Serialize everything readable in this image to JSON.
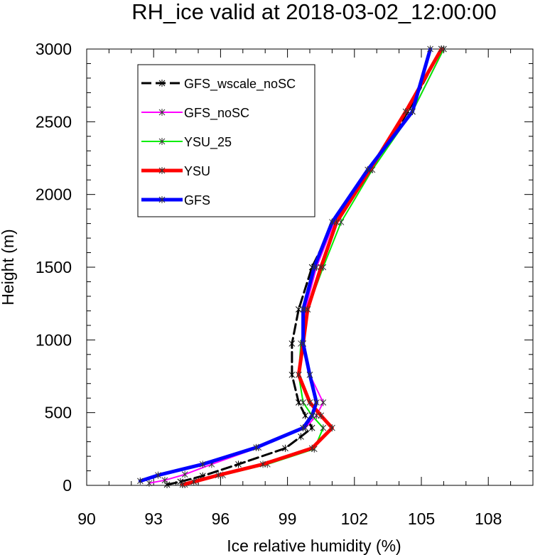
{
  "chart_data": {
    "type": "line",
    "title": "RH_ice valid at 2018-03-02_12:00:00",
    "xlabel": "Ice relative humidity (%)",
    "ylabel": "Height (m)",
    "xlim": [
      90,
      110
    ],
    "ylim": [
      0,
      3000
    ],
    "x_ticks": [
      90,
      93,
      96,
      99,
      102,
      105,
      108
    ],
    "y_ticks": [
      0,
      500,
      1000,
      1500,
      2000,
      2500,
      3000
    ],
    "x_tick_labels": [
      "90",
      "93",
      "96",
      "99",
      "102",
      "105",
      "108"
    ],
    "y_tick_labels": [
      "0",
      "500",
      "1000",
      "1500",
      "2000",
      "2500",
      "3000"
    ],
    "legend_position": "top-left",
    "grid": false,
    "series": [
      {
        "name": "GFS_wscale_noSC",
        "color": "#000000",
        "dashed": true,
        "width": 3,
        "points": [
          [
            93.6,
            5
          ],
          [
            94.2,
            25
          ],
          [
            95.2,
            65
          ],
          [
            96.8,
            145
          ],
          [
            98.9,
            255
          ],
          [
            99.6,
            335
          ],
          [
            100.1,
            395
          ],
          [
            99.8,
            480
          ],
          [
            99.5,
            570
          ],
          [
            99.2,
            760
          ],
          [
            99.2,
            975
          ],
          [
            99.5,
            1210
          ],
          [
            100.1,
            1500
          ],
          [
            101.1,
            1810
          ],
          [
            102.7,
            2170
          ],
          [
            104.4,
            2570
          ],
          [
            105.9,
            3000
          ]
        ]
      },
      {
        "name": "GFS_noSC",
        "color": "#ff00ff",
        "dashed": false,
        "width": 2,
        "points": [
          [
            92.8,
            15
          ],
          [
            93.5,
            35
          ],
          [
            94.4,
            75
          ],
          [
            95.6,
            145
          ],
          [
            97.7,
            260
          ],
          [
            99.8,
            395
          ],
          [
            100.3,
            480
          ],
          [
            100.6,
            570
          ],
          [
            100.0,
            760
          ],
          [
            99.7,
            975
          ],
          [
            99.8,
            1210
          ],
          [
            100.3,
            1500
          ],
          [
            101.1,
            1810
          ],
          [
            102.7,
            2170
          ],
          [
            104.6,
            2570
          ],
          [
            106.0,
            3000
          ]
        ]
      },
      {
        "name": "YSU_25",
        "color": "#00ee00",
        "dashed": false,
        "width": 2,
        "points": [
          [
            94.4,
            5
          ],
          [
            94.9,
            30
          ],
          [
            96.1,
            70
          ],
          [
            98.1,
            145
          ],
          [
            100.2,
            250
          ],
          [
            100.6,
            395
          ],
          [
            100.1,
            480
          ],
          [
            99.7,
            570
          ],
          [
            99.5,
            760
          ],
          [
            99.6,
            975
          ],
          [
            99.9,
            1210
          ],
          [
            100.6,
            1500
          ],
          [
            101.4,
            1810
          ],
          [
            102.8,
            2170
          ],
          [
            104.6,
            2570
          ],
          [
            106.0,
            3000
          ]
        ]
      },
      {
        "name": "YSU",
        "color": "#ff0000",
        "dashed": false,
        "width": 5,
        "points": [
          [
            94.3,
            5
          ],
          [
            94.8,
            25
          ],
          [
            95.9,
            70
          ],
          [
            97.9,
            145
          ],
          [
            100.1,
            255
          ],
          [
            101.0,
            395
          ],
          [
            100.5,
            480
          ],
          [
            100.0,
            570
          ],
          [
            99.5,
            760
          ],
          [
            99.7,
            975
          ],
          [
            99.9,
            1210
          ],
          [
            100.5,
            1500
          ],
          [
            101.2,
            1810
          ],
          [
            102.7,
            2170
          ],
          [
            104.3,
            2570
          ],
          [
            105.9,
            3000
          ]
        ]
      },
      {
        "name": "GFS",
        "color": "#0000ff",
        "dashed": false,
        "width": 5,
        "points": [
          [
            92.4,
            30
          ],
          [
            93.2,
            70
          ],
          [
            95.2,
            145
          ],
          [
            97.6,
            260
          ],
          [
            99.7,
            395
          ],
          [
            100.1,
            480
          ],
          [
            100.3,
            570
          ],
          [
            100.0,
            760
          ],
          [
            99.7,
            975
          ],
          [
            99.7,
            1210
          ],
          [
            100.2,
            1500
          ],
          [
            101.0,
            1810
          ],
          [
            102.6,
            2170
          ],
          [
            104.6,
            2570
          ],
          [
            105.4,
            3000
          ]
        ]
      }
    ]
  }
}
